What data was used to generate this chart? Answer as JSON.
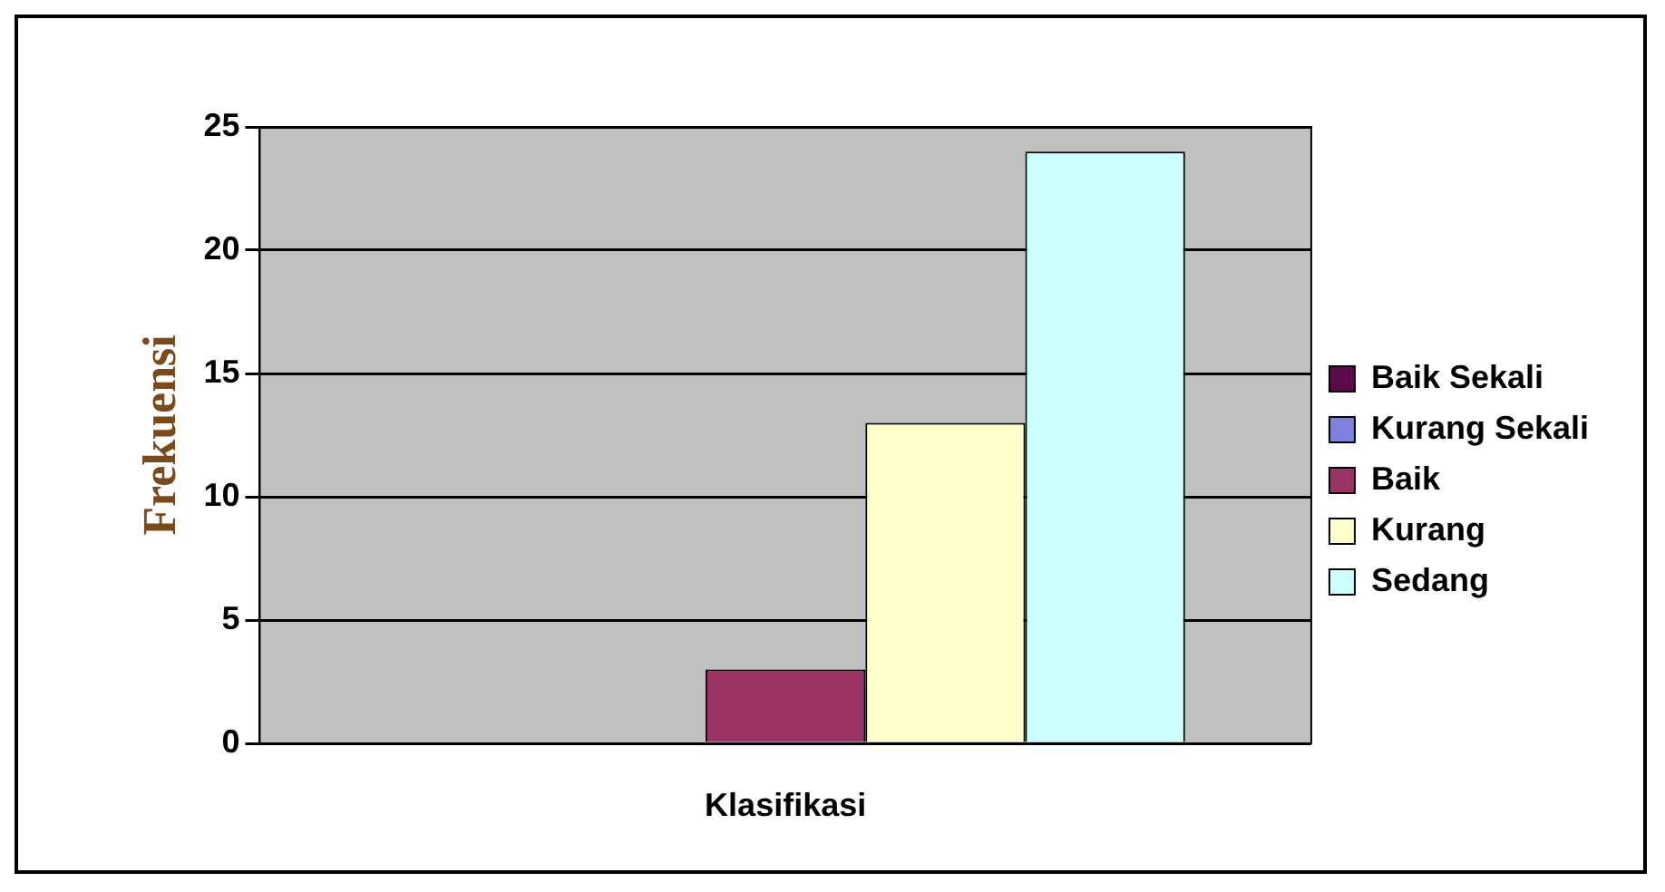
{
  "chart_data": {
    "type": "bar",
    "xlabel": "Klasifikasi",
    "ylabel": "Frekuensi",
    "categories": [
      null
    ],
    "series": [
      {
        "name": "Baik Sekali",
        "color": "#5c0a4a",
        "values": [
          0
        ]
      },
      {
        "name": "Kurang Sekali",
        "color": "#8080e0",
        "values": [
          0
        ]
      },
      {
        "name": "Baik",
        "color": "#993366",
        "values": [
          3
        ]
      },
      {
        "name": "Kurang",
        "color": "#ffffcc",
        "values": [
          13
        ]
      },
      {
        "name": "Sedang",
        "color": "#ccffff",
        "values": [
          24
        ]
      }
    ],
    "ylim": [
      0,
      25
    ],
    "yticks": [
      0,
      5,
      10,
      15,
      20,
      25
    ],
    "grid": "y",
    "legend": "right"
  }
}
